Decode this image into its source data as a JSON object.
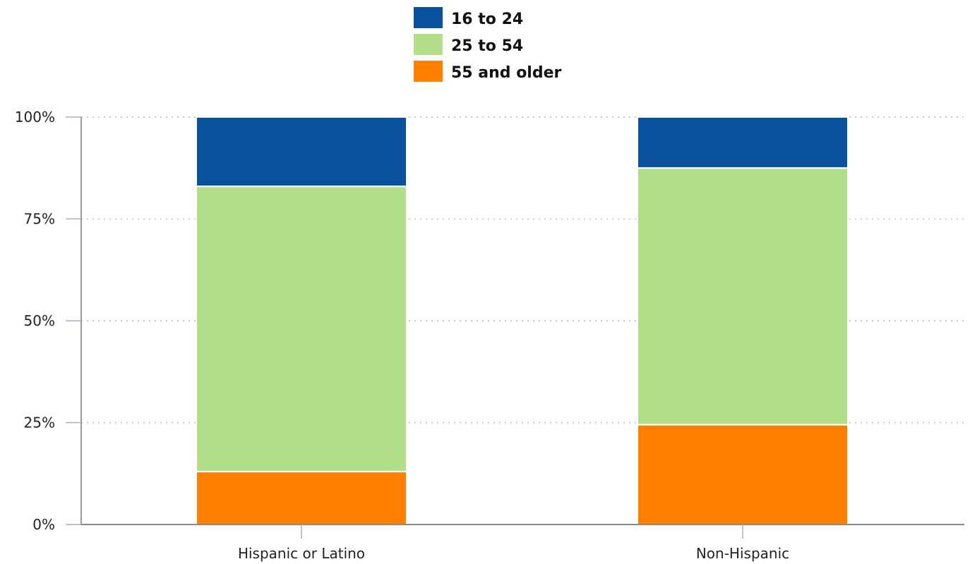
{
  "chart_data": {
    "type": "bar",
    "stacked": true,
    "categories": [
      "Hispanic or Latino",
      "Non-Hispanic"
    ],
    "series": [
      {
        "name": "55 and older",
        "color": "#FF8000",
        "values": [
          13,
          24.5
        ]
      },
      {
        "name": "25 to 54",
        "color": "#B3DF8A",
        "values": [
          70,
          63
        ]
      },
      {
        "name": "16 to 24",
        "color": "#08519C",
        "values": [
          17,
          12.5
        ]
      }
    ],
    "legend_order": [
      "16 to 24",
      "25 to 54",
      "55 and older"
    ],
    "legend_placement": "top-center",
    "yticks": [
      "0%",
      "25%",
      "50%",
      "75%",
      "100%"
    ],
    "ylim": [
      0,
      100
    ],
    "grid": true
  }
}
